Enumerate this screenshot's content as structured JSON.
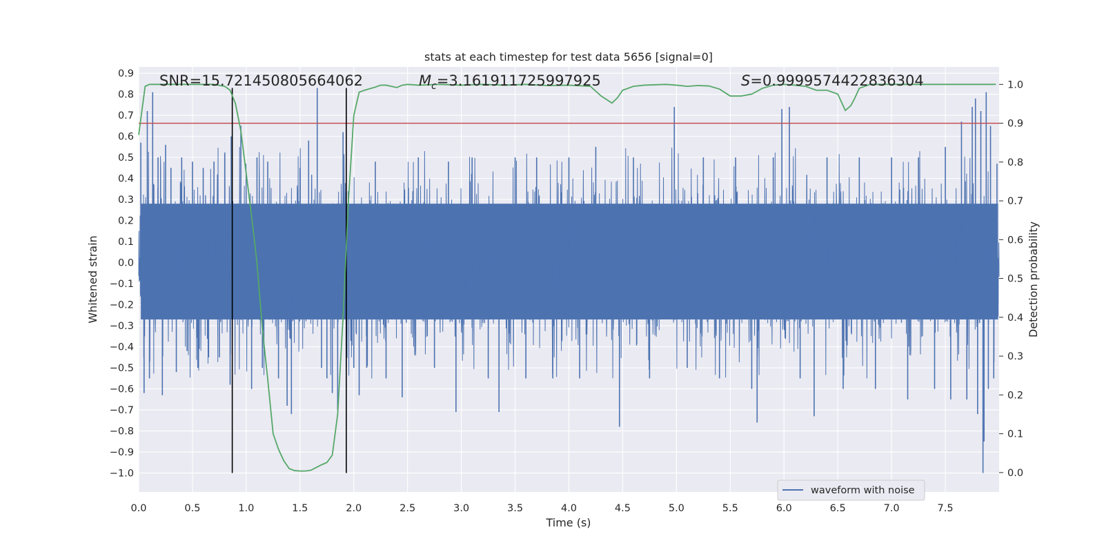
{
  "chart_data": {
    "type": "line",
    "title": "stats at each timestep for test data 5656 [signal=0]",
    "xlabel": "Time (s)",
    "ylabel": "Whitened strain",
    "ylabel_right": "Detection probability",
    "xlim": [
      0.0,
      8.0
    ],
    "ylim": [
      -1.09,
      0.93
    ],
    "ylim_right": [
      -0.05,
      1.045
    ],
    "x_ticks": [
      "0.0",
      "0.5",
      "1.0",
      "1.5",
      "2.0",
      "2.5",
      "3.0",
      "3.5",
      "4.0",
      "4.5",
      "5.0",
      "5.5",
      "6.0",
      "6.5",
      "7.0",
      "7.5"
    ],
    "y_ticks": [
      "0.9",
      "0.8",
      "0.7",
      "0.6",
      "0.5",
      "0.4",
      "0.3",
      "0.2",
      "0.1",
      "0.0",
      "−0.1",
      "−0.2",
      "−0.3",
      "−0.4",
      "−0.5",
      "−0.6",
      "−0.7",
      "−0.8",
      "−0.9",
      "−1.0"
    ],
    "y_tick_values": [
      0.9,
      0.8,
      0.7,
      0.6,
      0.5,
      0.4,
      0.3,
      0.2,
      0.1,
      0.0,
      -0.1,
      -0.2,
      -0.3,
      -0.4,
      -0.5,
      -0.6,
      -0.7,
      -0.8,
      -0.9,
      -1.0
    ],
    "y_right_ticks": [
      "1.0",
      "0.9",
      "0.8",
      "0.7",
      "0.6",
      "0.5",
      "0.4",
      "0.3",
      "0.2",
      "0.1",
      "0.0"
    ],
    "y_right_tick_values": [
      1.0,
      0.9,
      0.8,
      0.7,
      0.6,
      0.5,
      0.4,
      0.3,
      0.2,
      0.1,
      0.0
    ],
    "annotations": {
      "snr": "SNR=15.721450805664062",
      "mc_symbol": "M",
      "mc_sub": "c",
      "mc_value": "=3.161911725997925",
      "s_symbol": "S",
      "s_value": "=0.9999574422836304"
    },
    "series": [
      {
        "name": "waveform with noise",
        "color": "#4c72b0",
        "style": "dense noise; bulk envelope approx ±0.28, spikes to about ±0.8, min -1.0 near t=7.85",
        "spikes": [
          [
            0.02,
            0.57
          ],
          [
            0.05,
            -0.62
          ],
          [
            0.08,
            0.72
          ],
          [
            0.1,
            -0.55
          ],
          [
            0.13,
            0.81
          ],
          [
            0.18,
            0.5
          ],
          [
            0.22,
            -0.63
          ],
          [
            0.25,
            0.56
          ],
          [
            0.3,
            0.45
          ],
          [
            0.35,
            -0.52
          ],
          [
            0.4,
            0.5
          ],
          [
            0.45,
            -0.42
          ],
          [
            0.5,
            0.48
          ],
          [
            0.55,
            -0.5
          ],
          [
            0.6,
            0.45
          ],
          [
            0.65,
            -0.45
          ],
          [
            0.7,
            0.48
          ],
          [
            0.75,
            -0.45
          ],
          [
            0.8,
            0.52
          ],
          [
            0.85,
            -0.58
          ],
          [
            0.86,
            0.6
          ],
          [
            0.95,
            0.65
          ],
          [
            1.05,
            -0.6
          ],
          [
            1.1,
            0.5
          ],
          [
            1.15,
            -0.5
          ],
          [
            1.2,
            0.48
          ],
          [
            1.3,
            -0.55
          ],
          [
            1.38,
            -0.68
          ],
          [
            1.42,
            -0.72
          ],
          [
            1.5,
            0.45
          ],
          [
            1.58,
            0.58
          ],
          [
            1.66,
            0.83
          ],
          [
            1.7,
            -0.5
          ],
          [
            1.75,
            -0.55
          ],
          [
            1.8,
            -0.62
          ],
          [
            1.85,
            -0.7
          ],
          [
            1.9,
            0.62
          ],
          [
            1.93,
            -0.5
          ],
          [
            2.0,
            -0.5
          ],
          [
            2.05,
            -0.63
          ],
          [
            2.12,
            -0.5
          ],
          [
            2.2,
            0.48
          ],
          [
            2.3,
            -0.55
          ],
          [
            2.45,
            -0.64
          ],
          [
            2.6,
            0.5
          ],
          [
            2.75,
            -0.5
          ],
          [
            2.88,
            0.48
          ],
          [
            2.95,
            -0.71
          ],
          [
            3.1,
            0.5
          ],
          [
            3.25,
            -0.55
          ],
          [
            3.35,
            -0.71
          ],
          [
            3.5,
            0.5
          ],
          [
            3.6,
            -0.55
          ],
          [
            3.7,
            0.5
          ],
          [
            3.85,
            -0.55
          ],
          [
            4.0,
            0.5
          ],
          [
            4.1,
            -0.55
          ],
          [
            4.25,
            0.55
          ],
          [
            4.47,
            -0.78
          ],
          [
            4.6,
            0.5
          ],
          [
            4.75,
            -0.55
          ],
          [
            4.98,
            0.74
          ],
          [
            5.1,
            -0.5
          ],
          [
            5.25,
            0.5
          ],
          [
            5.4,
            -0.55
          ],
          [
            5.55,
            0.5
          ],
          [
            5.7,
            -0.6
          ],
          [
            5.75,
            -0.76
          ],
          [
            5.9,
            0.5
          ],
          [
            5.98,
            0.73
          ],
          [
            6.05,
            0.74
          ],
          [
            6.15,
            -0.55
          ],
          [
            6.28,
            -0.73
          ],
          [
            6.4,
            0.5
          ],
          [
            6.55,
            -0.6
          ],
          [
            6.7,
            0.5
          ],
          [
            6.85,
            -0.6
          ],
          [
            7.0,
            0.5
          ],
          [
            7.15,
            -0.65
          ],
          [
            7.25,
            0.5
          ],
          [
            7.4,
            -0.6
          ],
          [
            7.5,
            0.55
          ],
          [
            7.55,
            -0.65
          ],
          [
            7.65,
            0.67
          ],
          [
            7.7,
            -0.65
          ],
          [
            7.75,
            0.74
          ],
          [
            7.78,
            0.78
          ],
          [
            7.8,
            -0.72
          ],
          [
            7.83,
            0.72
          ],
          [
            7.85,
            -1.0
          ],
          [
            7.86,
            -0.85
          ],
          [
            7.88,
            0.81
          ],
          [
            7.9,
            -0.6
          ],
          [
            7.92,
            0.65
          ],
          [
            7.95,
            -0.55
          ],
          [
            7.98,
            0.47
          ]
        ]
      },
      {
        "name": "",
        "color": "#55a868",
        "axis": "right",
        "x": [
          0.0,
          0.06,
          0.1,
          0.2,
          0.4,
          0.6,
          0.7,
          0.8,
          0.85,
          0.9,
          0.95,
          1.0,
          1.05,
          1.1,
          1.15,
          1.2,
          1.25,
          1.3,
          1.35,
          1.4,
          1.45,
          1.5,
          1.55,
          1.6,
          1.65,
          1.7,
          1.75,
          1.8,
          1.85,
          1.9,
          1.95,
          2.0,
          2.05,
          2.1,
          2.2,
          2.25,
          2.3,
          2.4,
          2.45,
          2.5,
          2.6,
          2.8,
          3.0,
          3.2,
          3.4,
          3.6,
          3.8,
          4.0,
          4.2,
          4.3,
          4.4,
          4.45,
          4.5,
          4.6,
          4.7,
          4.9,
          5.0,
          5.1,
          5.2,
          5.3,
          5.4,
          5.5,
          5.6,
          5.7,
          5.8,
          5.9,
          6.0,
          6.1,
          6.2,
          6.3,
          6.4,
          6.5,
          6.57,
          6.62,
          6.65,
          6.7,
          6.8,
          7.0,
          7.5,
          7.97
        ],
        "y": [
          0.87,
          0.995,
          1.0,
          1.0,
          1.0,
          1.0,
          1.0,
          0.995,
          0.985,
          0.95,
          0.88,
          0.77,
          0.66,
          0.54,
          0.37,
          0.24,
          0.1,
          0.06,
          0.03,
          0.01,
          0.005,
          0.004,
          0.004,
          0.006,
          0.013,
          0.02,
          0.026,
          0.045,
          0.15,
          0.4,
          0.7,
          0.92,
          0.98,
          0.985,
          0.993,
          0.998,
          0.998,
          0.992,
          0.998,
          1.0,
          0.998,
          1.0,
          0.998,
          1.0,
          0.998,
          1.0,
          0.997,
          0.998,
          0.995,
          0.97,
          0.952,
          0.965,
          0.985,
          0.995,
          0.998,
          1.0,
          0.998,
          0.995,
          0.997,
          0.996,
          0.988,
          0.97,
          0.97,
          0.975,
          0.99,
          0.998,
          1.0,
          0.998,
          0.995,
          0.985,
          0.985,
          0.975,
          0.933,
          0.945,
          0.96,
          0.99,
          1.0,
          1.0,
          1.0,
          1.0
        ]
      }
    ],
    "hlines": [
      {
        "y": 0.9,
        "axis": "right",
        "color": "#c44e52"
      }
    ],
    "vlines": [
      {
        "x": 0.87,
        "color": "#000000",
        "y_from": -1.0,
        "y_to": 0.83
      },
      {
        "x": 1.93,
        "color": "#000000",
        "y_from": -1.0,
        "y_to": 0.83
      }
    ],
    "legend": {
      "placement": "bottom-right",
      "entries": [
        "waveform with noise"
      ]
    },
    "grid": true,
    "colors": {
      "background": "#eaeaf2",
      "grid": "#ffffff",
      "waveform": "#4c72b0",
      "probability": "#55a868",
      "threshold": "#c44e52",
      "vline": "#000000"
    }
  }
}
